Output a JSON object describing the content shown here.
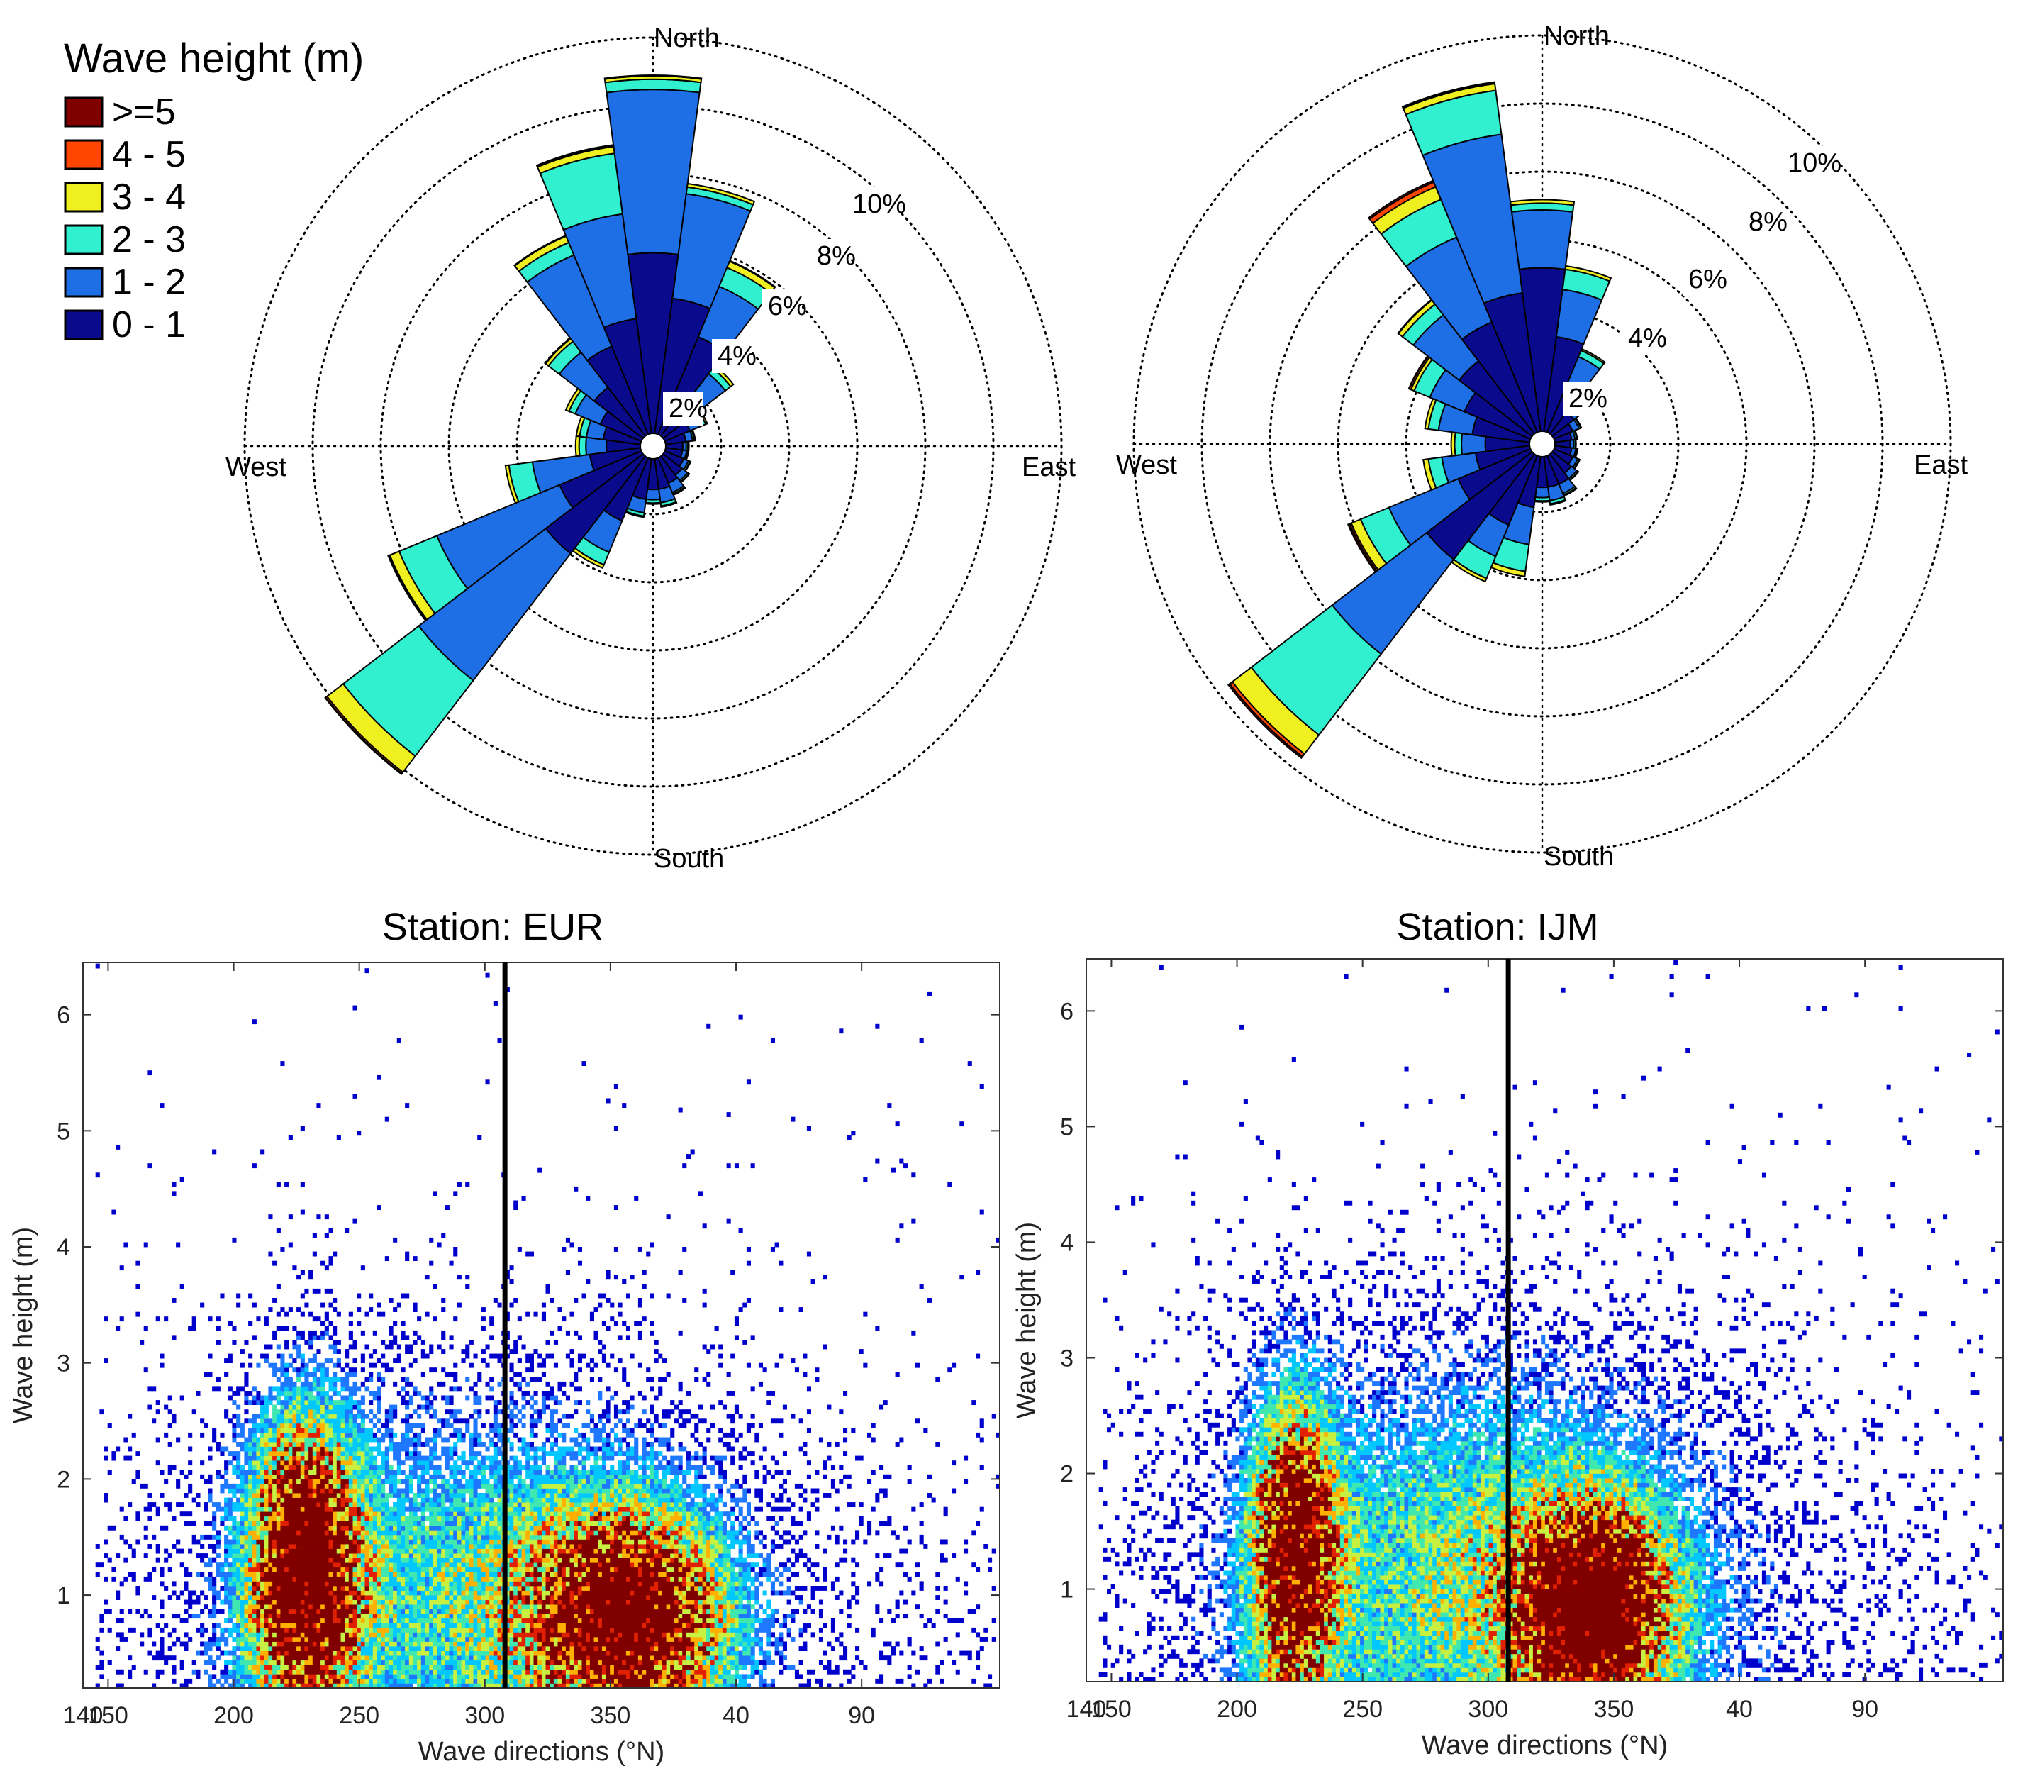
{
  "legend": {
    "title": "Wave height (m)",
    "items": [
      {
        "label": ">=5",
        "color": "#800000"
      },
      {
        "label": "4 - 5",
        "color": "#FF4500"
      },
      {
        "label": "3 - 4",
        "color": "#F0F020"
      },
      {
        "label": "2 - 3",
        "color": "#30F0D0"
      },
      {
        "label": "1 - 2",
        "color": "#1E6FE6"
      },
      {
        "label": "0 - 1",
        "color": "#0A0A8C"
      }
    ]
  },
  "compass": {
    "north": "North",
    "south": "South",
    "east": "East",
    "west": "West"
  },
  "colormap": [
    "#ffffff",
    "#0000cd",
    "#1e78ff",
    "#00c8ff",
    "#40e8b0",
    "#c8f040",
    "#ffb000",
    "#e02000",
    "#800000"
  ],
  "chart_data": [
    {
      "type": "polar-stacked-bar",
      "station": "EUR",
      "ring_labels": [
        "2%",
        "4%",
        "6%",
        "8%",
        "10%"
      ],
      "rings": [
        2,
        4,
        6,
        8,
        10,
        12
      ],
      "bin_edges": [
        "0-1",
        "1-2",
        "2-3",
        "3-4",
        "4-5",
        ">=5"
      ],
      "sectors": [
        {
          "dir": 0,
          "cum": [
            5.3,
            10.1,
            10.4,
            10.5,
            10.52,
            10.53
          ]
        },
        {
          "dir": 15,
          "cum": [
            4.0,
            7.1,
            7.3,
            7.4,
            7.41,
            7.42
          ]
        },
        {
          "dir": 30,
          "cum": [
            3.1,
            4.7,
            5.3,
            5.5,
            5.52,
            5.53
          ]
        },
        {
          "dir": 45,
          "cum": [
            1.5,
            2.3,
            2.5,
            2.6,
            2.61,
            2.62
          ]
        },
        {
          "dir": 60,
          "cum": [
            0.8,
            1.2,
            1.3,
            1.35,
            1.36,
            1.37
          ]
        },
        {
          "dir": 75,
          "cum": [
            0.6,
            0.8,
            0.85,
            0.88,
            0.89,
            0.9
          ]
        },
        {
          "dir": 90,
          "cum": [
            0.5,
            0.6,
            0.65,
            0.68,
            0.69,
            0.7
          ]
        },
        {
          "dir": 105,
          "cum": [
            0.5,
            0.62,
            0.66,
            0.68,
            0.69,
            0.7
          ]
        },
        {
          "dir": 120,
          "cum": [
            0.6,
            0.75,
            0.8,
            0.82,
            0.83,
            0.84
          ]
        },
        {
          "dir": 135,
          "cum": [
            0.7,
            0.9,
            0.95,
            0.97,
            0.98,
            0.99
          ]
        },
        {
          "dir": 150,
          "cum": [
            0.8,
            1.1,
            1.15,
            1.18,
            1.19,
            1.2
          ]
        },
        {
          "dir": 165,
          "cum": [
            0.9,
            1.3,
            1.4,
            1.43,
            1.44,
            1.45
          ]
        },
        {
          "dir": 180,
          "cum": [
            0.9,
            1.2,
            1.3,
            1.33,
            1.34,
            1.35
          ]
        },
        {
          "dir": 195,
          "cum": [
            1.2,
            1.6,
            1.7,
            1.73,
            1.74,
            1.75
          ]
        },
        {
          "dir": 210,
          "cum": [
            2.0,
            3.0,
            3.4,
            3.5,
            3.51,
            3.52
          ]
        },
        {
          "dir": 225,
          "cum": [
            3.6,
            8.3,
            11.1,
            11.7,
            11.75,
            11.77
          ]
        },
        {
          "dir": 240,
          "cum": [
            2.6,
            6.5,
            7.7,
            8.0,
            8.03,
            8.05
          ]
        },
        {
          "dir": 255,
          "cum": [
            1.5,
            3.2,
            3.9,
            4.0,
            4.01,
            4.02
          ]
        },
        {
          "dir": 270,
          "cum": [
            1.0,
            1.6,
            1.8,
            1.9,
            1.91,
            1.92
          ]
        },
        {
          "dir": 285,
          "cum": [
            1.1,
            1.6,
            1.8,
            1.9,
            1.91,
            1.92
          ]
        },
        {
          "dir": 300,
          "cum": [
            1.3,
            2.1,
            2.3,
            2.4,
            2.41,
            2.42
          ]
        },
        {
          "dir": 315,
          "cum": [
            1.8,
            3.1,
            3.5,
            3.6,
            3.62,
            3.63
          ]
        },
        {
          "dir": 330,
          "cum": [
            2.8,
            5.7,
            6.1,
            6.3,
            6.32,
            6.33
          ]
        },
        {
          "dir": 345,
          "cum": [
            3.4,
            6.5,
            8.3,
            8.5,
            8.53,
            8.55
          ]
        }
      ]
    },
    {
      "type": "polar-stacked-bar",
      "station": "IJM",
      "ring_labels": [
        "2%",
        "4%",
        "6%",
        "8%",
        "10%"
      ],
      "rings": [
        2,
        4,
        6,
        8,
        10,
        12
      ],
      "bin_edges": [
        "0-1",
        "1-2",
        "2-3",
        "3-4",
        "4-5",
        ">=5"
      ],
      "sectors": [
        {
          "dir": 0,
          "cum": [
            4.8,
            6.5,
            6.7,
            6.8,
            6.81,
            6.82
          ]
        },
        {
          "dir": 15,
          "cum": [
            2.8,
            4.2,
            4.8,
            4.9,
            4.91,
            4.92
          ]
        },
        {
          "dir": 30,
          "cum": [
            1.6,
            2.4,
            2.6,
            2.65,
            2.66,
            2.67
          ]
        },
        {
          "dir": 45,
          "cum": [
            0.8,
            1.2,
            1.3,
            1.33,
            1.34,
            1.35
          ]
        },
        {
          "dir": 60,
          "cum": [
            0.6,
            0.8,
            0.85,
            0.87,
            0.88,
            0.89
          ]
        },
        {
          "dir": 75,
          "cum": [
            0.5,
            0.6,
            0.65,
            0.67,
            0.68,
            0.69
          ]
        },
        {
          "dir": 90,
          "cum": [
            0.45,
            0.55,
            0.6,
            0.62,
            0.63,
            0.64
          ]
        },
        {
          "dir": 105,
          "cum": [
            0.5,
            0.62,
            0.66,
            0.68,
            0.69,
            0.7
          ]
        },
        {
          "dir": 120,
          "cum": [
            0.6,
            0.75,
            0.8,
            0.82,
            0.83,
            0.84
          ]
        },
        {
          "dir": 135,
          "cum": [
            0.7,
            0.9,
            0.95,
            0.97,
            0.98,
            0.99
          ]
        },
        {
          "dir": 150,
          "cum": [
            0.9,
            1.2,
            1.25,
            1.28,
            1.29,
            1.3
          ]
        },
        {
          "dir": 165,
          "cum": [
            0.9,
            1.3,
            1.4,
            1.43,
            1.44,
            1.45
          ]
        },
        {
          "dir": 180,
          "cum": [
            0.9,
            1.2,
            1.3,
            1.33,
            1.34,
            1.35
          ]
        },
        {
          "dir": 195,
          "cum": [
            1.5,
            2.6,
            3.4,
            3.55,
            3.56,
            3.57
          ]
        },
        {
          "dir": 210,
          "cum": [
            2.2,
            3.2,
            3.9,
            4.0,
            4.01,
            4.02
          ]
        },
        {
          "dir": 225,
          "cum": [
            3.9,
            7.4,
            10.4,
            11.1,
            11.2,
            11.25
          ]
        },
        {
          "dir": 240,
          "cum": [
            2.3,
            4.5,
            5.4,
            5.7,
            5.75,
            5.8
          ]
        },
        {
          "dir": 255,
          "cum": [
            1.6,
            2.6,
            3.0,
            3.15,
            3.16,
            3.17
          ]
        },
        {
          "dir": 270,
          "cum": [
            1.3,
            2.0,
            2.2,
            2.3,
            2.31,
            2.32
          ]
        },
        {
          "dir": 285,
          "cum": [
            1.7,
            2.7,
            3.0,
            3.1,
            3.11,
            3.12
          ]
        },
        {
          "dir": 300,
          "cum": [
            2.1,
            3.2,
            3.7,
            3.8,
            3.85,
            3.87
          ]
        },
        {
          "dir": 315,
          "cum": [
            2.7,
            4.4,
            4.8,
            4.95,
            4.97,
            4.98
          ]
        },
        {
          "dir": 330,
          "cum": [
            3.5,
            6.2,
            7.4,
            7.8,
            7.95,
            8.0
          ]
        },
        {
          "dir": 345,
          "cum": [
            4.1,
            8.8,
            10.1,
            10.3,
            10.33,
            10.35
          ]
        }
      ]
    },
    {
      "type": "heatmap",
      "title": "Station: EUR",
      "xlabel": "Wave directions (°N)",
      "ylabel": "Wave height (m)",
      "xticks": [
        150,
        200,
        250,
        300,
        350,
        40,
        90,
        140
      ],
      "yticks": [
        1,
        2,
        3,
        4,
        5,
        6
      ],
      "ylim": [
        0.2,
        6.45
      ],
      "divider_dir": 308,
      "clusters": [
        {
          "dir": 227,
          "height": 1.2,
          "sd_dir": 15,
          "sd_height": 0.9,
          "weight": 1.0
        },
        {
          "dir": 357,
          "height": 0.8,
          "sd_dir": 25,
          "sd_height": 0.6,
          "weight": 0.95
        },
        {
          "dir": 300,
          "height": 1.0,
          "sd_dir": 60,
          "sd_height": 1.1,
          "weight": 0.35
        }
      ]
    },
    {
      "type": "heatmap",
      "title": "Station: IJM",
      "xlabel": "Wave directions (°N)",
      "ylabel": "Wave height (m)",
      "xticks": [
        150,
        200,
        250,
        300,
        350,
        40,
        90,
        140
      ],
      "yticks": [
        1,
        2,
        3,
        4,
        5,
        6
      ],
      "ylim": [
        0.2,
        6.45
      ],
      "divider_dir": 308,
      "clusters": [
        {
          "dir": 222,
          "height": 1.3,
          "sd_dir": 12,
          "sd_height": 0.9,
          "weight": 0.9
        },
        {
          "dir": 342,
          "height": 0.8,
          "sd_dir": 20,
          "sd_height": 0.6,
          "weight": 1.0
        },
        {
          "dir": 300,
          "height": 1.1,
          "sd_dir": 60,
          "sd_height": 1.2,
          "weight": 0.4
        }
      ]
    }
  ]
}
